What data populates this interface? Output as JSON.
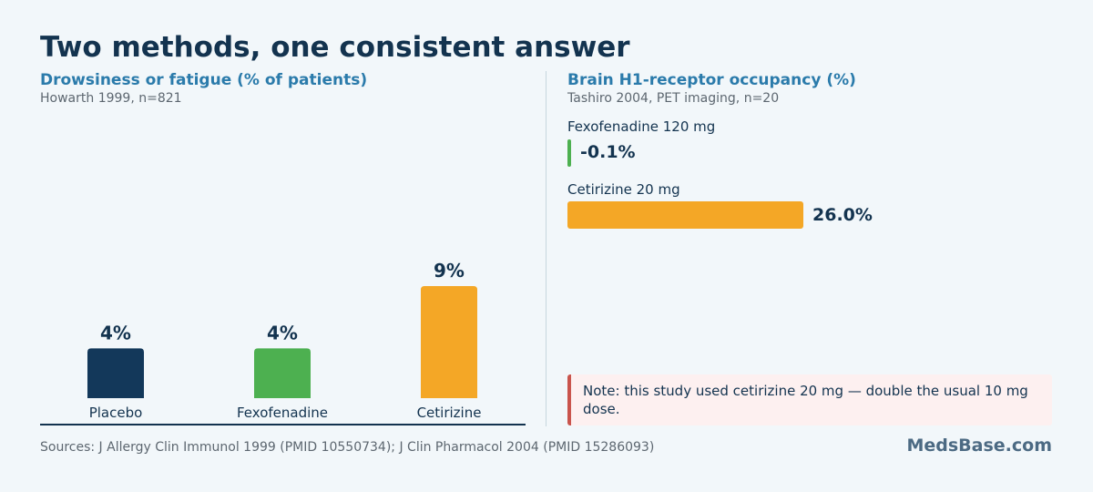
{
  "title": "Two methods, one consistent answer",
  "chart_data": [
    {
      "type": "bar",
      "title": "Drowsiness or fatigue (% of patients)",
      "subtitle": "Howarth 1999, n=821",
      "categories": [
        "Placebo",
        "Fexofenadine",
        "Cetirizine"
      ],
      "values": [
        4,
        4,
        9
      ],
      "value_labels": [
        "4%",
        "4%",
        "9%"
      ],
      "colors": [
        "#13385a",
        "#4db050",
        "#f4a726"
      ],
      "ylim": [
        0,
        9
      ]
    },
    {
      "type": "bar",
      "orientation": "horizontal",
      "title": "Brain H1-receptor occupancy (%)",
      "subtitle": "Tashiro 2004, PET imaging, n=20",
      "categories": [
        "Fexofenadine 120 mg",
        "Cetirizine 20 mg"
      ],
      "values": [
        -0.1,
        26.0
      ],
      "value_labels": [
        "-0.1%",
        "26.0%"
      ],
      "colors": [
        "#4db050",
        "#f4a726"
      ],
      "xlim": [
        0,
        26
      ]
    }
  ],
  "note": "Note: this study used cetirizine 20 mg — double the usual 10 mg dose.",
  "sources": "Sources: J Allergy Clin Immunol 1999 (PMID 10550734); J Clin Pharmacol 2004 (PMID 15286093)",
  "brand": "MedsBase.com"
}
